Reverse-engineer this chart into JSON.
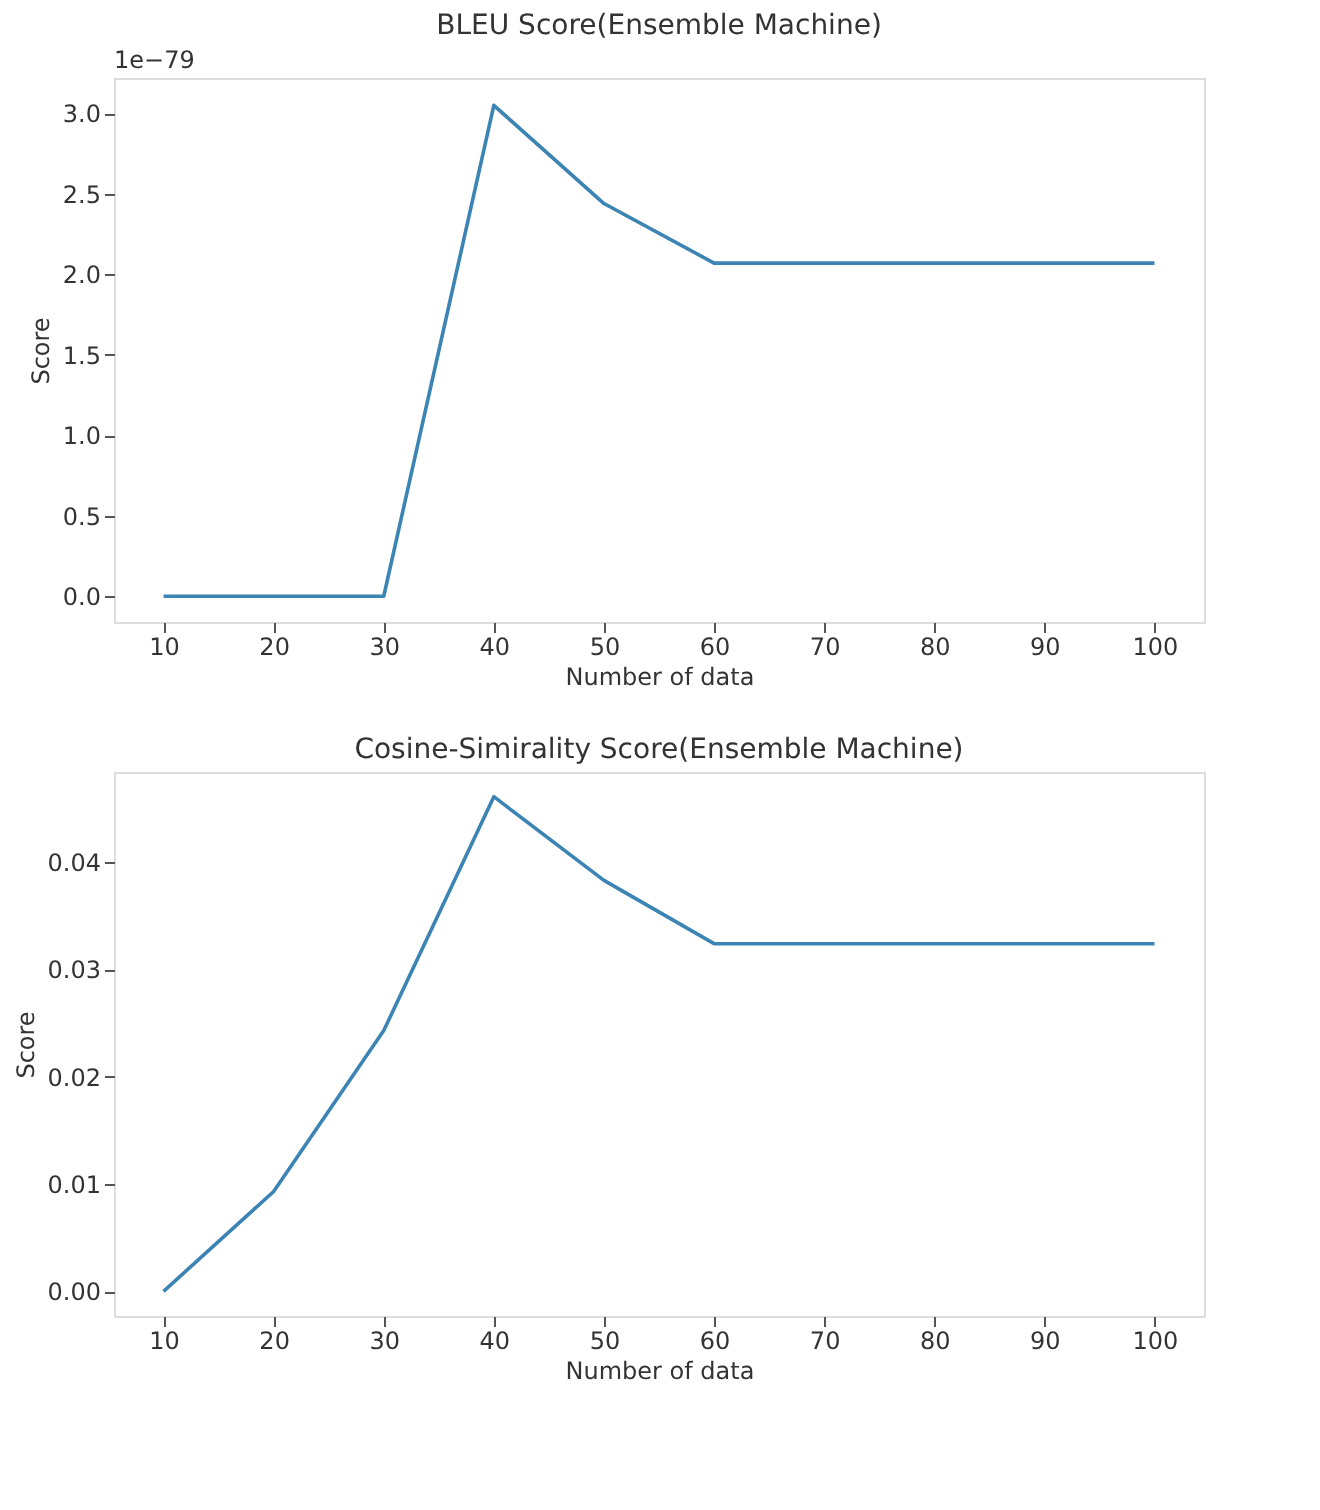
{
  "chart_data": [
    {
      "type": "line",
      "title": "BLEU Score(Ensemble Machine)",
      "xlabel": "Number of data",
      "ylabel": "Score",
      "annotations": [
        "1e−79"
      ],
      "x": [
        10,
        20,
        30,
        40,
        50,
        60,
        70,
        80,
        90,
        100
      ],
      "series": [
        {
          "color": "#3b84b4",
          "values": [
            0,
            0,
            0,
            3.05,
            2.44,
            2.07,
            2.07,
            2.07,
            2.07,
            2.07
          ]
        }
      ],
      "xlim": [
        5.5,
        104.5
      ],
      "xticks": [
        10,
        20,
        30,
        40,
        50,
        60,
        70,
        80,
        90,
        100
      ],
      "ylim": [
        -0.16,
        3.22
      ],
      "yticks": [
        {
          "value": 0,
          "label": "0.0"
        },
        {
          "value": 0.5,
          "label": "0.5"
        },
        {
          "value": 1,
          "label": "1.0"
        },
        {
          "value": 1.5,
          "label": "1.5"
        },
        {
          "value": 2,
          "label": "2.0"
        },
        {
          "value": 2.5,
          "label": "2.5"
        },
        {
          "value": 3,
          "label": "3.0"
        }
      ],
      "grid": false,
      "marker": "none",
      "line_style": "solid"
    },
    {
      "type": "line",
      "title": "Cosine-Simirality Score(Ensemble Machine)",
      "xlabel": "Number of data",
      "ylabel": "Score",
      "x": [
        10,
        20,
        30,
        40,
        50,
        60,
        70,
        80,
        90,
        100
      ],
      "series": [
        {
          "color": "#3b84b4",
          "values": [
            0,
            0.0093,
            0.0243,
            0.0461,
            0.0383,
            0.0324,
            0.0324,
            0.0324,
            0.0324,
            0.0324
          ]
        }
      ],
      "xlim": [
        5.5,
        104.5
      ],
      "xticks": [
        10,
        20,
        30,
        40,
        50,
        60,
        70,
        80,
        90,
        100
      ],
      "ylim": [
        -0.0023,
        0.0484
      ],
      "yticks": [
        {
          "value": 0,
          "label": "0.00"
        },
        {
          "value": 0.01,
          "label": "0.01"
        },
        {
          "value": 0.02,
          "label": "0.02"
        },
        {
          "value": 0.03,
          "label": "0.03"
        },
        {
          "value": 0.04,
          "label": "0.04"
        }
      ],
      "grid": false,
      "marker": "none",
      "line_style": "solid"
    }
  ]
}
